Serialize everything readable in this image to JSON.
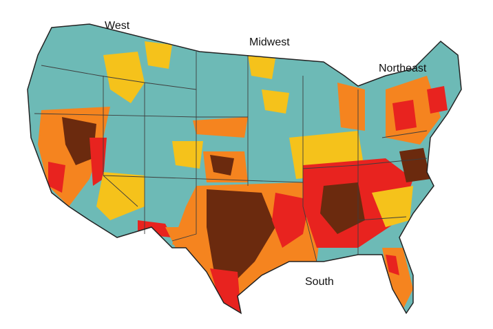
{
  "regions": [
    {
      "label": "West"
    },
    {
      "label": "Midwest"
    },
    {
      "label": "Northeast"
    },
    {
      "label": "South"
    }
  ]
}
